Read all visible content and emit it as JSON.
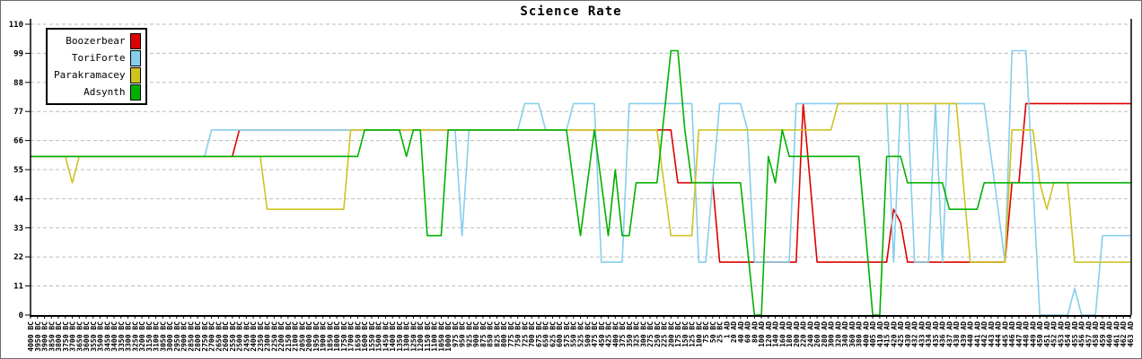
{
  "title": "Science Rate",
  "colors": {
    "background": "#ffffff",
    "grid": "#bbbbbb",
    "axis": "#000000",
    "red": "#dd0000",
    "light_blue": "#87ceeb",
    "yellow": "#cfc320",
    "green": "#00b000"
  },
  "chart_data": {
    "type": "line",
    "title": "Science Rate",
    "ylabel": "",
    "xlabel": "",
    "ylim": [
      0,
      110
    ],
    "yticks": [
      0,
      11,
      22,
      33,
      44,
      55,
      66,
      77,
      88,
      99,
      110
    ],
    "grid": "horizontal-dashed",
    "legend_position": "top-left",
    "x_labels": [
      "4000 BC",
      "3950 BC",
      "3900 BC",
      "3850 BC",
      "3800 BC",
      "3750 BC",
      "3700 BC",
      "3650 BC",
      "3600 BC",
      "3550 BC",
      "3500 BC",
      "3450 BC",
      "3400 BC",
      "3350 BC",
      "3300 BC",
      "3250 BC",
      "3200 BC",
      "3150 BC",
      "3100 BC",
      "3050 BC",
      "3000 BC",
      "2950 BC",
      "2900 BC",
      "2850 BC",
      "2800 BC",
      "2750 BC",
      "2700 BC",
      "2650 BC",
      "2600 BC",
      "2550 BC",
      "2500 BC",
      "2450 BC",
      "2400 BC",
      "2350 BC",
      "2300 BC",
      "2250 BC",
      "2200 BC",
      "2150 BC",
      "2100 BC",
      "2050 BC",
      "2000 BC",
      "1950 BC",
      "1900 BC",
      "1850 BC",
      "1800 BC",
      "1750 BC",
      "1700 BC",
      "1650 BC",
      "1600 BC",
      "1550 BC",
      "1500 BC",
      "1450 BC",
      "1400 BC",
      "1350 BC",
      "1300 BC",
      "1250 BC",
      "1200 BC",
      "1150 BC",
      "1100 BC",
      "1050 BC",
      "1000 BC",
      "975 BC",
      "950 BC",
      "925 BC",
      "900 BC",
      "875 BC",
      "850 BC",
      "825 BC",
      "800 BC",
      "775 BC",
      "750 BC",
      "725 BC",
      "700 BC",
      "675 BC",
      "650 BC",
      "625 BC",
      "600 BC",
      "575 BC",
      "550 BC",
      "525 BC",
      "500 BC",
      "475 BC",
      "450 BC",
      "425 BC",
      "400 BC",
      "375 BC",
      "350 BC",
      "325 BC",
      "300 BC",
      "275 BC",
      "250 BC",
      "225 BC",
      "200 BC",
      "175 BC",
      "150 BC",
      "125 BC",
      "100 BC",
      "75 BC",
      "50 BC",
      "25 BC",
      "1 AD",
      "20 AD",
      "40 AD",
      "60 AD",
      "80 AD",
      "100 AD",
      "120 AD",
      "140 AD",
      "160 AD",
      "180 AD",
      "200 AD",
      "220 AD",
      "240 AD",
      "260 AD",
      "280 AD",
      "300 AD",
      "320 AD",
      "340 AD",
      "360 AD",
      "380 AD",
      "400 AD",
      "405 AD",
      "410 AD",
      "415 AD",
      "420 AD",
      "425 AD",
      "430 AD",
      "432 AD",
      "433 AD",
      "434 AD",
      "435 AD",
      "436 AD",
      "437 AD",
      "438 AD",
      "439 AD",
      "440 AD",
      "441 AD",
      "442 AD",
      "443 AD",
      "444 AD",
      "445 AD",
      "446 AD",
      "447 AD",
      "448 AD",
      "449 AD",
      "450 AD",
      "451 AD",
      "452 AD",
      "453 AD",
      "454 AD",
      "455 AD",
      "456 AD",
      "457 AD",
      "458 AD",
      "459 AD",
      "460 AD",
      "461 AD",
      "462 AD",
      "463 AD"
    ],
    "series": [
      {
        "name": "Boozerbear",
        "color": "#dd0000",
        "values": [
          60,
          60,
          60,
          60,
          60,
          60,
          60,
          60,
          60,
          60,
          60,
          60,
          60,
          60,
          60,
          60,
          60,
          60,
          60,
          60,
          60,
          60,
          60,
          60,
          60,
          60,
          60,
          60,
          60,
          60,
          70,
          70,
          70,
          70,
          70,
          70,
          70,
          70,
          70,
          70,
          70,
          70,
          70,
          70,
          70,
          70,
          70,
          70,
          70,
          70,
          70,
          70,
          70,
          70,
          70,
          70,
          70,
          70,
          70,
          70,
          70,
          70,
          70,
          70,
          70,
          70,
          70,
          70,
          70,
          70,
          70,
          70,
          70,
          70,
          70,
          70,
          70,
          70,
          70,
          70,
          70,
          70,
          70,
          70,
          70,
          70,
          70,
          70,
          70,
          70,
          70,
          70,
          70,
          50,
          50,
          50,
          50,
          50,
          50,
          20,
          20,
          20,
          20,
          20,
          20,
          20,
          20,
          20,
          20,
          20,
          20,
          80,
          50,
          20,
          20,
          20,
          20,
          20,
          20,
          20,
          20,
          20,
          20,
          20,
          40,
          35,
          20,
          20,
          20,
          20,
          20,
          20,
          20,
          20,
          20,
          20,
          20,
          20,
          20,
          20,
          20,
          50,
          50,
          80,
          80,
          80,
          80,
          80,
          80,
          80,
          80,
          80,
          80,
          80,
          80,
          80,
          80,
          80,
          80
        ]
      },
      {
        "name": "ToriForte",
        "color": "#87ceeb",
        "values": [
          60,
          60,
          60,
          60,
          60,
          60,
          60,
          60,
          60,
          60,
          60,
          60,
          60,
          60,
          60,
          60,
          60,
          60,
          60,
          60,
          60,
          60,
          60,
          60,
          60,
          60,
          70,
          70,
          70,
          70,
          70,
          70,
          70,
          70,
          70,
          70,
          70,
          70,
          70,
          70,
          70,
          70,
          70,
          70,
          70,
          70,
          70,
          70,
          70,
          70,
          70,
          70,
          70,
          70,
          70,
          70,
          70,
          70,
          70,
          70,
          70,
          70,
          30,
          70,
          70,
          70,
          70,
          70,
          70,
          70,
          70,
          80,
          80,
          80,
          70,
          70,
          70,
          70,
          80,
          80,
          80,
          80,
          20,
          20,
          20,
          20,
          80,
          80,
          80,
          80,
          80,
          80,
          80,
          80,
          80,
          80,
          20,
          20,
          50,
          80,
          80,
          80,
          80,
          70,
          20,
          20,
          20,
          20,
          20,
          20,
          80,
          80,
          80,
          80,
          80,
          80,
          80,
          80,
          80,
          80,
          80,
          80,
          80,
          80,
          20,
          80,
          80,
          20,
          20,
          20,
          80,
          20,
          80,
          80,
          80,
          80,
          80,
          80,
          60,
          40,
          20,
          100,
          100,
          100,
          50,
          0,
          0,
          0,
          0,
          0,
          10,
          0,
          0,
          0,
          30,
          30,
          30,
          30,
          30
        ]
      },
      {
        "name": "Parakramacey",
        "color": "#cfc320",
        "values": [
          60,
          60,
          60,
          60,
          60,
          60,
          50,
          60,
          60,
          60,
          60,
          60,
          60,
          60,
          60,
          60,
          60,
          60,
          60,
          60,
          60,
          60,
          60,
          60,
          60,
          60,
          60,
          60,
          60,
          60,
          60,
          60,
          60,
          60,
          40,
          40,
          40,
          40,
          40,
          40,
          40,
          40,
          40,
          40,
          40,
          40,
          70,
          70,
          70,
          70,
          70,
          70,
          70,
          70,
          70,
          70,
          70,
          70,
          70,
          70,
          70,
          70,
          70,
          70,
          70,
          70,
          70,
          70,
          70,
          70,
          70,
          70,
          70,
          70,
          70,
          70,
          70,
          70,
          70,
          70,
          70,
          70,
          70,
          70,
          70,
          70,
          70,
          70,
          70,
          70,
          70,
          50,
          30,
          30,
          30,
          30,
          70,
          70,
          70,
          70,
          70,
          70,
          70,
          70,
          70,
          70,
          70,
          70,
          70,
          70,
          70,
          70,
          70,
          70,
          70,
          70,
          80,
          80,
          80,
          80,
          80,
          80,
          80,
          80,
          80,
          80,
          80,
          80,
          80,
          80,
          80,
          80,
          80,
          80,
          50,
          20,
          20,
          20,
          20,
          20,
          20,
          70,
          70,
          70,
          70,
          50,
          40,
          50,
          50,
          50,
          20,
          20,
          20,
          20,
          20,
          20,
          20,
          20,
          20
        ]
      },
      {
        "name": "Adsynth",
        "color": "#00b000",
        "values": [
          60,
          60,
          60,
          60,
          60,
          60,
          60,
          60,
          60,
          60,
          60,
          60,
          60,
          60,
          60,
          60,
          60,
          60,
          60,
          60,
          60,
          60,
          60,
          60,
          60,
          60,
          60,
          60,
          60,
          60,
          60,
          60,
          60,
          60,
          60,
          60,
          60,
          60,
          60,
          60,
          60,
          60,
          60,
          60,
          60,
          60,
          60,
          60,
          70,
          70,
          70,
          70,
          70,
          70,
          60,
          70,
          70,
          30,
          30,
          30,
          70,
          70,
          70,
          70,
          70,
          70,
          70,
          70,
          70,
          70,
          70,
          70,
          70,
          70,
          70,
          70,
          70,
          70,
          50,
          30,
          50,
          70,
          50,
          30,
          55,
          30,
          30,
          50,
          50,
          50,
          50,
          75,
          100,
          100,
          70,
          50,
          50,
          50,
          50,
          50,
          50,
          50,
          50,
          25,
          0,
          0,
          60,
          50,
          70,
          60,
          60,
          60,
          60,
          60,
          60,
          60,
          60,
          60,
          60,
          60,
          30,
          0,
          0,
          60,
          60,
          60,
          50,
          50,
          50,
          50,
          50,
          50,
          40,
          40,
          40,
          40,
          40,
          50,
          50,
          50,
          50,
          50,
          50,
          50,
          50,
          50,
          50,
          50,
          50,
          50,
          50,
          50,
          50,
          50,
          50,
          50,
          50,
          50,
          50
        ]
      }
    ]
  }
}
